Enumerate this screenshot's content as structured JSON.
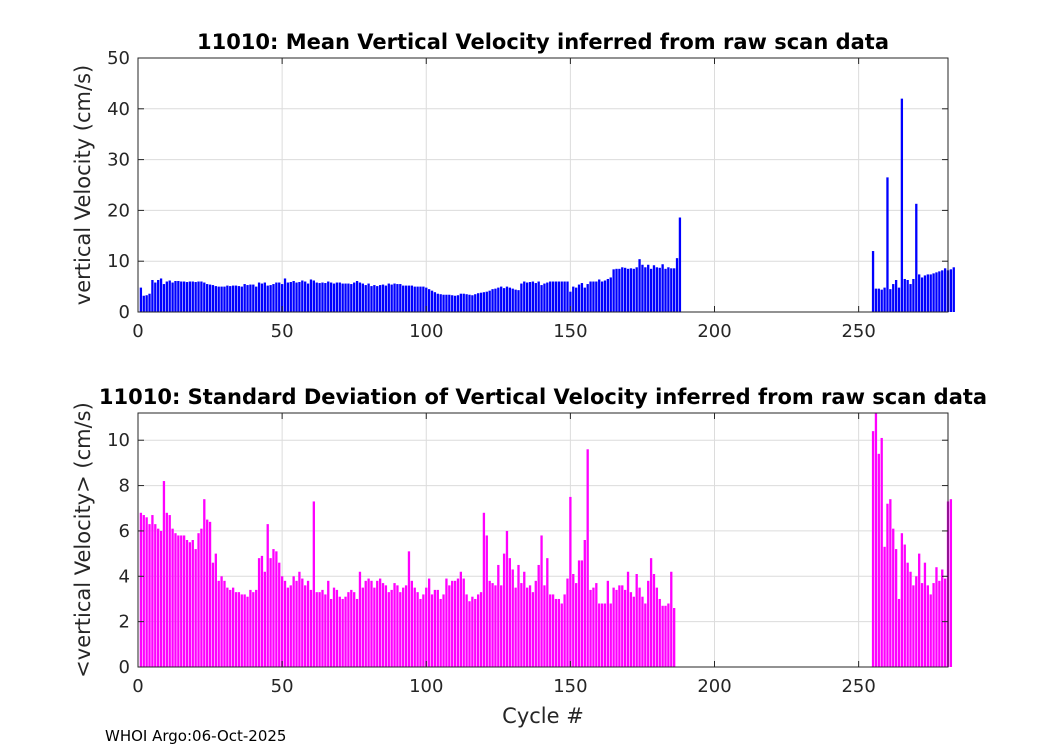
{
  "chart_data": [
    {
      "type": "bar",
      "title": "11010: Mean Vertical Velocity inferred from raw scan data",
      "xlabel": "",
      "ylabel": "vertical Velocity (cm/s)",
      "xlim": [
        0,
        281
      ],
      "ylim": [
        0,
        50
      ],
      "xticks": [
        "0",
        "50",
        "100",
        "150",
        "200",
        "250"
      ],
      "yticks": [
        "0",
        "10",
        "20",
        "30",
        "40",
        "50"
      ],
      "grid": true,
      "color": "#0000ff",
      "segments": [
        {
          "start_cycle": 1,
          "values": [
            4.8,
            3.2,
            3.3,
            3.6,
            6.3,
            5.8,
            6.3,
            6.6,
            5.5,
            6.0,
            6.2,
            5.8,
            6.1,
            6.1,
            6.0,
            6.0,
            5.9,
            6.0,
            6.0,
            5.9,
            6.0,
            6.0,
            5.8,
            5.5,
            5.4,
            5.3,
            5.1,
            5.0,
            5.0,
            5.0,
            5.2,
            5.1,
            5.2,
            5.2,
            5.1,
            5.0,
            5.5,
            5.3,
            5.4,
            5.4,
            5.0,
            5.8,
            5.6,
            5.8,
            5.2,
            5.3,
            5.5,
            5.8,
            5.8,
            5.5,
            6.6,
            5.8,
            5.9,
            6.1,
            5.8,
            5.9,
            6.2,
            6.0,
            5.6,
            6.4,
            6.2,
            5.8,
            5.7,
            5.8,
            5.7,
            6.0,
            5.8,
            5.6,
            5.8,
            5.8,
            5.6,
            5.6,
            5.6,
            5.5,
            5.8,
            6.1,
            5.8,
            5.6,
            5.3,
            5.6,
            5.1,
            5.3,
            5.1,
            5.3,
            5.4,
            5.2,
            5.6,
            5.4,
            5.6,
            5.5,
            5.5,
            5.2,
            5.2,
            5.2,
            5.2,
            5.0,
            5.0,
            5.0,
            5.0,
            4.8,
            4.5,
            4.2,
            3.9,
            3.6,
            3.5,
            3.4,
            3.4,
            3.4,
            3.3,
            3.2,
            3.3,
            3.6,
            3.6,
            3.5,
            3.4,
            3.3,
            3.5,
            3.7,
            3.8,
            3.9,
            4.0,
            4.2,
            4.5,
            4.6,
            4.8,
            5.0,
            4.7,
            5.0,
            4.8,
            4.6,
            4.4,
            4.3,
            5.6,
            6.0,
            5.8,
            5.9,
            6.0,
            5.7,
            6.0,
            5.3,
            5.6,
            5.8,
            6.0,
            6.0,
            6.0,
            6.0,
            6.0,
            6.0,
            6.0,
            4.0,
            5.0,
            4.8,
            5.4,
            5.7,
            4.8,
            5.5,
            6.0,
            6.0,
            6.0,
            6.4,
            6.0,
            6.2,
            6.5,
            6.8,
            8.4,
            8.5,
            8.5,
            8.8,
            8.7,
            8.5,
            8.6,
            8.5,
            8.8,
            10.4,
            9.3,
            8.8,
            9.3,
            8.5,
            9.2,
            8.8,
            8.7,
            9.4,
            8.5,
            8.8,
            8.6,
            8.6,
            10.6,
            18.6
          ]
        },
        {
          "start_cycle": 255,
          "values": [
            12.0,
            4.6,
            4.6,
            4.4,
            4.8,
            26.5,
            4.5,
            5.5,
            6.3,
            4.8,
            42.0,
            6.5,
            6.3,
            5.5,
            6.5,
            21.3,
            7.4,
            6.8,
            7.2,
            7.4,
            7.4,
            7.6,
            7.8,
            8.0,
            8.2,
            8.6,
            8.2,
            8.4,
            8.8
          ]
        }
      ]
    },
    {
      "type": "bar",
      "title": "11010: Standard Deviation of Vertical Velocity inferred from raw scan data",
      "xlabel": "Cycle #",
      "ylabel": "<vertical Velocity> (cm/s)",
      "xlim": [
        0,
        281
      ],
      "ylim": [
        0,
        11.2
      ],
      "xticks": [
        "0",
        "50",
        "100",
        "150",
        "200",
        "250"
      ],
      "yticks": [
        "0",
        "2",
        "4",
        "6",
        "8",
        "10"
      ],
      "grid": true,
      "color": "#ff00ff",
      "segments": [
        {
          "start_cycle": 1,
          "values": [
            6.8,
            6.7,
            6.6,
            6.3,
            6.7,
            6.3,
            6.1,
            6.0,
            8.2,
            6.8,
            6.7,
            6.1,
            5.9,
            5.8,
            5.8,
            5.8,
            5.6,
            5.5,
            5.6,
            5.2,
            5.9,
            6.1,
            7.4,
            6.5,
            6.4,
            4.6,
            5.0,
            3.8,
            4.0,
            3.8,
            3.5,
            3.4,
            3.5,
            3.3,
            3.3,
            3.2,
            3.2,
            3.1,
            3.4,
            3.3,
            3.4,
            4.8,
            4.9,
            4.2,
            6.3,
            4.8,
            5.2,
            5.1,
            4.6,
            4.0,
            3.8,
            3.5,
            3.6,
            4.0,
            3.8,
            4.2,
            3.9,
            3.6,
            3.8,
            3.4,
            7.3,
            3.3,
            3.3,
            3.4,
            3.2,
            3.8,
            3.0,
            3.5,
            3.4,
            3.1,
            3.0,
            3.1,
            3.3,
            3.4,
            3.3,
            3.0,
            4.2,
            3.5,
            3.8,
            3.9,
            3.8,
            3.5,
            3.8,
            3.9,
            3.7,
            3.6,
            3.3,
            3.4,
            3.7,
            3.6,
            3.3,
            3.5,
            3.6,
            5.1,
            3.8,
            3.5,
            3.3,
            3.0,
            3.2,
            3.5,
            3.9,
            3.2,
            3.4,
            3.4,
            3.0,
            3.2,
            3.9,
            3.6,
            3.8,
            3.8,
            3.9,
            4.2,
            3.9,
            3.2,
            2.9,
            3.1,
            3.0,
            3.2,
            3.3,
            6.8,
            5.8,
            3.8,
            3.7,
            3.6,
            4.5,
            3.6,
            5.0,
            6.0,
            4.8,
            4.3,
            3.5,
            4.5,
            3.7,
            4.2,
            3.5,
            3.6,
            3.3,
            3.8,
            4.5,
            5.8,
            3.6,
            4.8,
            3.2,
            3.2,
            3.0,
            3.0,
            2.8,
            3.2,
            3.9,
            7.5,
            4.1,
            3.7,
            4.7,
            4.7,
            5.6,
            9.6,
            3.4,
            3.5,
            3.7,
            2.8,
            2.8,
            2.8,
            3.8,
            2.8,
            3.5,
            3.4,
            3.6,
            3.6,
            3.4,
            4.2,
            3.3,
            3.1,
            4.1,
            3.5,
            3.1,
            2.8,
            3.8,
            4.8,
            4.1,
            3.5,
            3.0,
            2.7,
            2.7,
            2.8,
            4.2,
            2.6
          ]
        },
        {
          "start_cycle": 255,
          "values": [
            10.4,
            11.2,
            9.4,
            10.1,
            5.3,
            7.2,
            7.4,
            6.1,
            5.2,
            3.0,
            5.9,
            5.4,
            4.6,
            4.2,
            3.6,
            4.0,
            5.0,
            3.7,
            4.6,
            3.6,
            3.2,
            3.7,
            4.4,
            3.8,
            4.3,
            3.9,
            7.3,
            7.4
          ]
        }
      ]
    }
  ],
  "footer": "WHOI Argo:06-Oct-2025"
}
